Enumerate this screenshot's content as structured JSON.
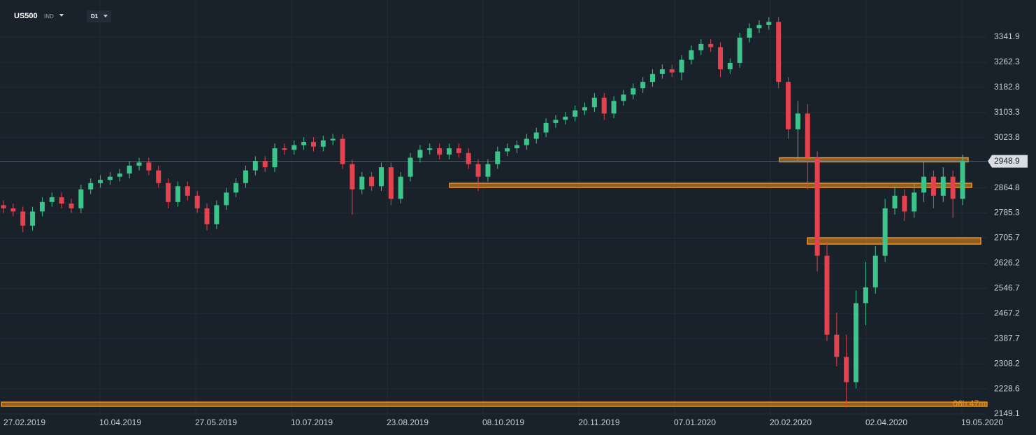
{
  "header": {
    "symbol": "US500",
    "market": "IND",
    "timeframe": "D1"
  },
  "chart_data": {
    "type": "candlestick",
    "x_labels": [
      "27.02.2019",
      "10.04.2019",
      "27.05.2019",
      "10.07.2019",
      "23.08.2019",
      "08.10.2019",
      "20.11.2019",
      "07.01.2020",
      "20.02.2020",
      "02.04.2020",
      "19.05.2020"
    ],
    "open": [
      2810,
      2800,
      2790,
      2745,
      2790,
      2820,
      2835,
      2815,
      2800,
      2860,
      2880,
      2890,
      2900,
      2910,
      2935,
      2945,
      2920,
      2880,
      2820,
      2870,
      2840,
      2800,
      2750,
      2810,
      2850,
      2880,
      2920,
      2950,
      2930,
      2990,
      2985,
      3000,
      3010,
      2995,
      3015,
      3020,
      2940,
      2860,
      2900,
      2870,
      2930,
      2830,
      2900,
      2960,
      2985,
      2990,
      2970,
      2990,
      2975,
      2940,
      2900,
      2940,
      2980,
      2990,
      3000,
      3020,
      3040,
      3070,
      3080,
      3090,
      3110,
      3120,
      3150,
      3100,
      3140,
      3160,
      3180,
      3200,
      3225,
      3240,
      3230,
      3270,
      3300,
      3320,
      3310,
      3240,
      3260,
      3340,
      3370,
      3380,
      3390,
      3200,
      3050,
      3100,
      2960,
      2650,
      2400,
      2330,
      2250,
      2500,
      2550,
      2650,
      2800,
      2840,
      2790,
      2850,
      2900,
      2840,
      2900,
      2830
    ],
    "high": [
      2825,
      2815,
      2805,
      2805,
      2835,
      2850,
      2850,
      2830,
      2875,
      2895,
      2905,
      2915,
      2925,
      2950,
      2960,
      2960,
      2935,
      2895,
      2885,
      2885,
      2855,
      2815,
      2825,
      2865,
      2895,
      2935,
      2965,
      2965,
      3005,
      3005,
      3015,
      3025,
      3025,
      3030,
      3035,
      3035,
      2955,
      2915,
      2915,
      2945,
      2945,
      2915,
      2975,
      3000,
      3005,
      3005,
      3005,
      3005,
      2990,
      2955,
      2955,
      2995,
      3005,
      3015,
      3035,
      3055,
      3085,
      3095,
      3105,
      3125,
      3135,
      3165,
      3165,
      3155,
      3175,
      3195,
      3215,
      3240,
      3255,
      3255,
      3285,
      3315,
      3335,
      3335,
      3325,
      3275,
      3355,
      3385,
      3395,
      3405,
      3405,
      3215,
      3140,
      3130,
      2980,
      2700,
      2470,
      2400,
      2540,
      2630,
      2680,
      2830,
      2870,
      2860,
      2880,
      2950,
      2920,
      2930,
      2920,
      2970
    ],
    "low": [
      2785,
      2775,
      2725,
      2730,
      2775,
      2805,
      2800,
      2785,
      2785,
      2845,
      2865,
      2875,
      2885,
      2895,
      2920,
      2905,
      2865,
      2800,
      2805,
      2825,
      2785,
      2730,
      2735,
      2795,
      2835,
      2865,
      2905,
      2915,
      2915,
      2970,
      2970,
      2985,
      2980,
      2980,
      3000,
      2925,
      2780,
      2845,
      2855,
      2855,
      2810,
      2815,
      2885,
      2945,
      2970,
      2955,
      2955,
      2960,
      2925,
      2855,
      2885,
      2925,
      2965,
      2975,
      2985,
      3005,
      3025,
      3055,
      3065,
      3075,
      3095,
      3105,
      3080,
      3085,
      3125,
      3145,
      3165,
      3185,
      3210,
      3215,
      3205,
      3255,
      3285,
      3295,
      3215,
      3225,
      3245,
      3325,
      3355,
      3365,
      3180,
      3020,
      2950,
      2860,
      2600,
      2380,
      2300,
      2170,
      2230,
      2430,
      2530,
      2630,
      2780,
      2760,
      2770,
      2820,
      2800,
      2820,
      2770,
      2810
    ],
    "close": [
      2800,
      2790,
      2745,
      2790,
      2820,
      2835,
      2815,
      2800,
      2860,
      2880,
      2890,
      2900,
      2910,
      2935,
      2945,
      2920,
      2880,
      2820,
      2870,
      2840,
      2800,
      2750,
      2810,
      2850,
      2880,
      2920,
      2950,
      2930,
      2990,
      2985,
      3000,
      3010,
      2995,
      3015,
      3020,
      2940,
      2860,
      2900,
      2870,
      2930,
      2830,
      2900,
      2960,
      2985,
      2990,
      2970,
      2990,
      2975,
      2940,
      2900,
      2940,
      2980,
      2990,
      3000,
      3020,
      3040,
      3070,
      3080,
      3090,
      3110,
      3120,
      3150,
      3100,
      3140,
      3160,
      3180,
      3200,
      3225,
      3240,
      3230,
      3270,
      3300,
      3320,
      3310,
      3240,
      3260,
      3340,
      3370,
      3380,
      3390,
      3200,
      3050,
      3100,
      2960,
      2650,
      2400,
      2330,
      2250,
      2500,
      2550,
      2650,
      2800,
      2840,
      2790,
      2850,
      2900,
      2840,
      2900,
      2830,
      2950
    ],
    "up_color": "#3cc48b",
    "down_color": "#e5424f",
    "ylim": [
      2142.5,
      3459.2
    ],
    "yticks": [
      3341.9,
      3262.3,
      3182.8,
      3103.3,
      3023.8,
      2864.8,
      2785.3,
      2705.7,
      2626.2,
      2546.7,
      2467.2,
      2387.7,
      2308.2,
      2228.6,
      2149.1
    ],
    "last_price": 2948.9,
    "zones": [
      {
        "top": 2960,
        "bottom": 2947
      },
      {
        "top": 2879.4,
        "bottom": 2866.1
      },
      {
        "top": 2706.8,
        "bottom": 2686.8
      },
      {
        "top": 2186.8,
        "bottom": 2173.5
      }
    ],
    "zone_color": "#f0921e",
    "timer": "06h 47m",
    "grid": true
  }
}
